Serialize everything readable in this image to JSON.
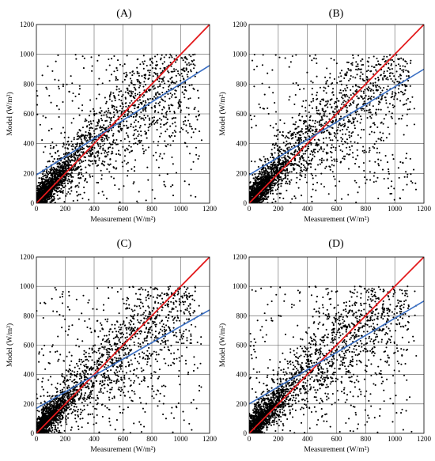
{
  "chart_data": [
    {
      "type": "scatter",
      "panel": "(A)",
      "xlabel": "Measurement (W/m²)",
      "ylabel": "Model (W/m²)",
      "xlim": [
        0,
        1200
      ],
      "ylim": [
        0,
        1200
      ],
      "xticks": [
        0,
        200,
        400,
        600,
        800,
        1000,
        1200
      ],
      "yticks": [
        0,
        200,
        400,
        600,
        800,
        1000,
        1200
      ],
      "grid": true,
      "series": [
        {
          "kind": "reference",
          "color": "#e31a1c",
          "x": [
            0,
            1200
          ],
          "y": [
            0,
            1200
          ]
        },
        {
          "kind": "regression",
          "color": "#3a6fc4",
          "x": [
            0,
            1200
          ],
          "y": [
            190,
            925
          ]
        }
      ],
      "scatter_profile": {
        "count": 2600,
        "fit_intercept": 190,
        "fit_slope": 0.6125,
        "max": 1000
      }
    },
    {
      "type": "scatter",
      "panel": "(B)",
      "xlabel": "Measurement (W/m²)",
      "ylabel": "Model (W/m²)",
      "xlim": [
        0,
        1200
      ],
      "ylim": [
        0,
        1200
      ],
      "xticks": [
        0,
        200,
        400,
        600,
        800,
        1000,
        1200
      ],
      "yticks": [
        0,
        200,
        400,
        600,
        800,
        1000,
        1200
      ],
      "grid": true,
      "series": [
        {
          "kind": "reference",
          "color": "#e31a1c",
          "x": [
            0,
            1200
          ],
          "y": [
            0,
            1200
          ]
        },
        {
          "kind": "regression",
          "color": "#3a6fc4",
          "x": [
            0,
            1200
          ],
          "y": [
            190,
            900
          ]
        }
      ],
      "scatter_profile": {
        "count": 2600,
        "fit_intercept": 190,
        "fit_slope": 0.592,
        "max": 1000
      }
    },
    {
      "type": "scatter",
      "panel": "(C)",
      "xlabel": "Measurement (W/m²)",
      "ylabel": "Model (W/m²)",
      "xlim": [
        0,
        1200
      ],
      "ylim": [
        0,
        1200
      ],
      "xticks": [
        0,
        200,
        400,
        600,
        800,
        1000,
        1200
      ],
      "yticks": [
        0,
        200,
        400,
        600,
        800,
        1000,
        1200
      ],
      "grid": true,
      "series": [
        {
          "kind": "reference",
          "color": "#e31a1c",
          "x": [
            0,
            1200
          ],
          "y": [
            0,
            1200
          ]
        },
        {
          "kind": "regression",
          "color": "#3a6fc4",
          "x": [
            0,
            1200
          ],
          "y": [
            170,
            840
          ]
        }
      ],
      "scatter_profile": {
        "count": 2600,
        "fit_intercept": 170,
        "fit_slope": 0.558,
        "max": 1000
      }
    },
    {
      "type": "scatter",
      "panel": "(D)",
      "xlabel": "Measurement (W/m²)",
      "ylabel": "Model (W/m²)",
      "xlim": [
        0,
        1200
      ],
      "ylim": [
        0,
        1200
      ],
      "xticks": [
        0,
        200,
        400,
        600,
        800,
        1000,
        1200
      ],
      "yticks": [
        0,
        200,
        400,
        600,
        800,
        1000,
        1200
      ],
      "grid": true,
      "series": [
        {
          "kind": "reference",
          "color": "#e31a1c",
          "x": [
            0,
            1200
          ],
          "y": [
            0,
            1200
          ]
        },
        {
          "kind": "regression",
          "color": "#3a6fc4",
          "x": [
            0,
            1200
          ],
          "y": [
            200,
            900
          ]
        }
      ],
      "scatter_profile": {
        "count": 2600,
        "fit_intercept": 200,
        "fit_slope": 0.583,
        "max": 1000
      }
    }
  ]
}
